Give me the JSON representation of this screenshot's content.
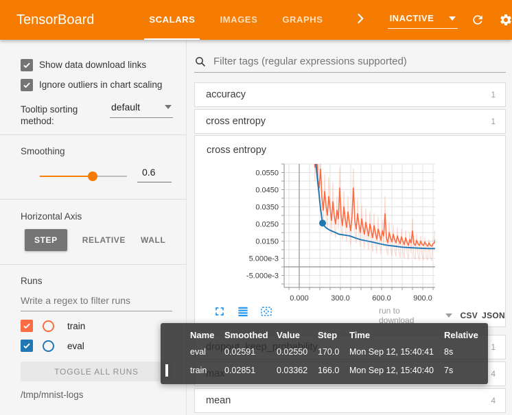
{
  "colors": {
    "appbar": "#f57c00",
    "accent": "#f57c00",
    "train": "#fb6c42",
    "eval": "#1f77b4",
    "active_button_bg": "#757575",
    "chart_icon_blue": "#2196f3"
  },
  "header": {
    "title": "TensorBoard",
    "tabs": [
      {
        "label": "SCALARS",
        "active": true
      },
      {
        "label": "IMAGES",
        "active": false
      },
      {
        "label": "GRAPHS",
        "active": false
      }
    ],
    "status": {
      "label": "INACTIVE"
    },
    "action_icons": [
      "chevron-right",
      "refresh",
      "settings",
      "help"
    ]
  },
  "sidebar": {
    "options": [
      {
        "label": "Show data download links",
        "checked": true
      },
      {
        "label": "Ignore outliers in chart scaling",
        "checked": true
      }
    ],
    "tooltip_sorting": {
      "label": "Tooltip sorting method:",
      "value": "default"
    },
    "smoothing": {
      "label": "Smoothing",
      "value": "0.6"
    },
    "horizontal_axis": {
      "label": "Horizontal Axis",
      "options": [
        "STEP",
        "RELATIVE",
        "WALL"
      ],
      "active": "STEP"
    },
    "runs": {
      "label": "Runs",
      "filter_placeholder": "Write a regex to filter runs",
      "items": [
        {
          "label": "train",
          "color": "#fb6c42",
          "checked": true
        },
        {
          "label": "eval",
          "color": "#1f77b4",
          "checked": true
        }
      ],
      "toggle_all_label": "TOGGLE ALL RUNS",
      "logdir": "/tmp/mnist-logs"
    }
  },
  "main": {
    "filter": {
      "placeholder": "Filter tags (regular expressions supported)"
    },
    "cards_top": [
      {
        "label": "accuracy",
        "count": "1"
      },
      {
        "label": "cross entropy",
        "count": "1"
      }
    ],
    "chart_card": {
      "title": "cross entropy",
      "toolbar_icons": [
        "fullscreen",
        "data-list",
        "fit-domain"
      ],
      "download": {
        "label": "run to download",
        "csv": "CSV",
        "json": "JSON"
      }
    },
    "cards_bottom": [
      {
        "label": "dropout_keep_probability",
        "count": "1"
      },
      {
        "label": "max",
        "count": "4"
      },
      {
        "label": "mean",
        "count": "4"
      }
    ]
  },
  "tooltip": {
    "columns": [
      "Name",
      "Smoothed",
      "Value",
      "Step",
      "Time",
      "Relative"
    ],
    "rows": [
      {
        "name": "eval",
        "color": "#1f77b4",
        "highlight": false,
        "smoothed": "0.02591",
        "value": "0.02550",
        "step": "170.0",
        "time": "Mon Sep 12, 15:40:41",
        "relative": "8s"
      },
      {
        "name": "train",
        "color": "#fb6c42",
        "highlight": true,
        "smoothed": "0.02851",
        "value": "0.03362",
        "step": "166.0",
        "time": "Mon Sep 12, 15:40:40",
        "relative": "7s"
      }
    ]
  },
  "chart_data": {
    "type": "line",
    "title": "cross entropy",
    "xlim": [
      -110,
      990
    ],
    "ylim": [
      -0.012,
      0.06
    ],
    "grid": {
      "x_minor_step": 75,
      "y_minor_step": 0.005
    },
    "xticks": [
      {
        "v": 0,
        "label": "0.000"
      },
      {
        "v": 300,
        "label": "300.0"
      },
      {
        "v": 600,
        "label": "600.0"
      },
      {
        "v": 900,
        "label": "900.0"
      }
    ],
    "yticks": [
      {
        "v": 0.055,
        "label": "0.0550"
      },
      {
        "v": 0.045,
        "label": "0.0450"
      },
      {
        "v": 0.035,
        "label": "0.0350"
      },
      {
        "v": 0.025,
        "label": "0.0250"
      },
      {
        "v": 0.015,
        "label": "0.0150"
      },
      {
        "v": 0.005,
        "label": "5.000e-3"
      },
      {
        "v": -0.005,
        "label": "-5.000e-3"
      }
    ],
    "series": [
      {
        "name": "train_raw",
        "color": "#fb6c42",
        "opacity": 0.25,
        "width": 1.2,
        "x": {
          "start": 105,
          "step": 10
        },
        "y": [
          0.08,
          0.05,
          0.09,
          0.06,
          0.038,
          0.068,
          0.034,
          0.024,
          0.054,
          0.03,
          0.022,
          0.052,
          0.04,
          0.019,
          0.049,
          0.025,
          0.017,
          0.041,
          0.022,
          0.058,
          0.024,
          0.016,
          0.044,
          0.022,
          0.015,
          0.041,
          0.02,
          0.013,
          0.038,
          0.057,
          0.021,
          0.014,
          0.04,
          0.019,
          0.012,
          0.036,
          0.017,
          0.011,
          0.034,
          0.016,
          0.01,
          0.032,
          0.015,
          0.009,
          0.031,
          0.014,
          0.008,
          0.029,
          0.013,
          0.0075,
          0.027,
          0.012,
          0.041,
          0.01,
          0.007,
          0.026,
          0.011,
          0.0065,
          0.024,
          0.01,
          0.006,
          0.023,
          0.0095,
          0.0055,
          0.022,
          0.009,
          0.005,
          0.021,
          0.0085,
          0.0045,
          0.02,
          0.008,
          0.028,
          0.006,
          0.0045,
          0.019,
          0.007,
          0.004,
          0.018,
          0.0065,
          0.004,
          0.017,
          0.006,
          0.0038,
          0.016,
          0.0055,
          0.0035,
          0.015,
          0.018,
          0.024
        ]
      },
      {
        "name": "train_smoothed",
        "color": "#fb6c42",
        "opacity": 1,
        "width": 1.6,
        "x": {
          "start": 105,
          "step": 10
        },
        "y": [
          0.068,
          0.058,
          0.075,
          0.052,
          0.046,
          0.057,
          0.041,
          0.033,
          0.044,
          0.036,
          0.03,
          0.041,
          0.034,
          0.027,
          0.038,
          0.03,
          0.025,
          0.033,
          0.028,
          0.046,
          0.03,
          0.024,
          0.035,
          0.028,
          0.023,
          0.032,
          0.026,
          0.021,
          0.03,
          0.046,
          0.027,
          0.022,
          0.031,
          0.025,
          0.02,
          0.028,
          0.023,
          0.019,
          0.026,
          0.022,
          0.018,
          0.025,
          0.021,
          0.017,
          0.024,
          0.02,
          0.016,
          0.022,
          0.019,
          0.0155,
          0.021,
          0.018,
          0.031,
          0.017,
          0.014,
          0.02,
          0.017,
          0.0145,
          0.019,
          0.016,
          0.014,
          0.018,
          0.0155,
          0.0135,
          0.0175,
          0.015,
          0.013,
          0.017,
          0.0145,
          0.0125,
          0.016,
          0.014,
          0.021,
          0.0135,
          0.0125,
          0.0155,
          0.0135,
          0.0125,
          0.015,
          0.013,
          0.0125,
          0.0145,
          0.013,
          0.012,
          0.014,
          0.0125,
          0.012,
          0.0135,
          0.014,
          0.017
        ]
      },
      {
        "name": "eval_smoothed",
        "color": "#1f77b4",
        "opacity": 1,
        "width": 1.9,
        "x": [
          115,
          125,
          135,
          145,
          155,
          165,
          170,
          180,
          200,
          225,
          255,
          290,
          330,
          370,
          410,
          450,
          500,
          550,
          600,
          650,
          700,
          750,
          800,
          850,
          900,
          950,
          1000
        ],
        "y": [
          0.066,
          0.057,
          0.049,
          0.042,
          0.034,
          0.028,
          0.0255,
          0.024,
          0.0225,
          0.0213,
          0.0203,
          0.019,
          0.0185,
          0.018,
          0.0168,
          0.0158,
          0.015,
          0.0141,
          0.0132,
          0.0125,
          0.012,
          0.0115,
          0.0112,
          0.011,
          0.0108,
          0.0107,
          0.0107
        ]
      }
    ],
    "marker": {
      "series": "eval_smoothed",
      "x": 170,
      "y": 0.0255,
      "color": "#1f77b4",
      "r": 5
    }
  }
}
